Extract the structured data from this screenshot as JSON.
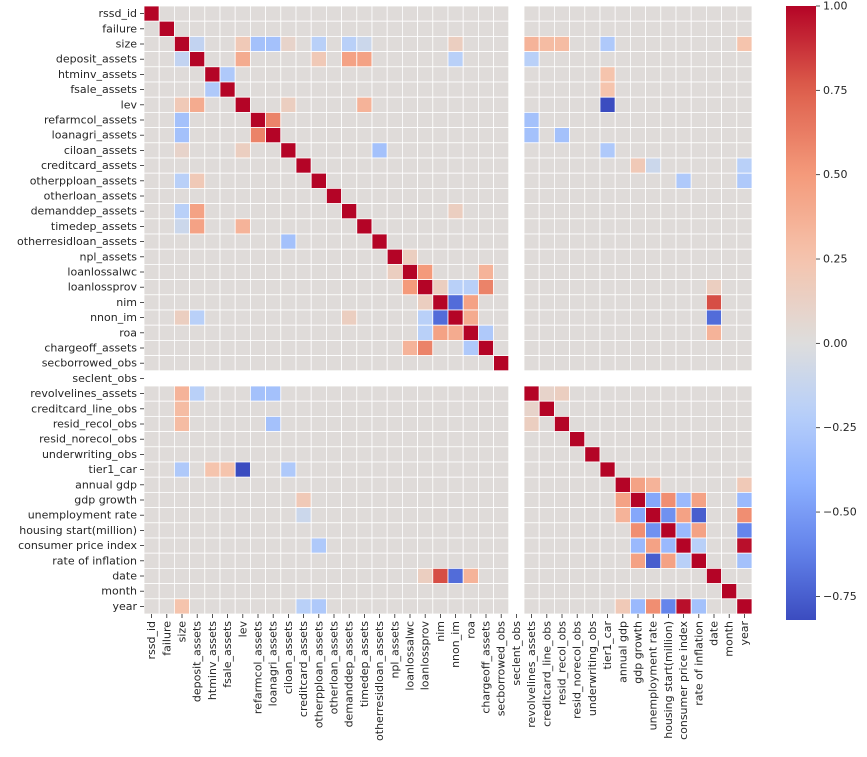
{
  "chart_data": {
    "type": "heatmap",
    "title": "",
    "xlabel": "",
    "ylabel": "",
    "colormap": "coolwarm",
    "vmin": -0.82,
    "vmax": 1.0,
    "nan_color": "#ffffff",
    "grid_color": "#ffffff",
    "labels": [
      "rssd_id",
      "failure",
      "size",
      "deposit_assets",
      "htminv_assets",
      "fsale_assets",
      "lev",
      "refarmcol_assets",
      "loanagri_assets",
      "ciloan_assets",
      "creditcard_assets",
      "otherpploan_assets",
      "otherloan_assets",
      "demanddep_assets",
      "timedep_assets",
      "otherresidloan_assets",
      "npl_assets",
      "loanlossalwc",
      "loanlossprov",
      "nim",
      "nnon_im",
      "roa",
      "chargeoff_assets",
      "secborrowed_obs",
      "seclent_obs",
      "revolvelines_assets",
      "creditcard_line_obs",
      "resid_recol_obs",
      "resid_norecol_obs",
      "underwriting_obs",
      "tier1_car",
      "annual gdp",
      "gdp growth",
      "unemployment rate",
      "housing start(million)",
      "consumer price index",
      "rate of inflation",
      "date",
      "month",
      "year"
    ],
    "default_value": 0.02,
    "nan_rows_cols": [
      "seclent_obs"
    ],
    "pairs": [
      [
        "size",
        "deposit_assets",
        -0.15
      ],
      [
        "size",
        "lev",
        0.2
      ],
      [
        "size",
        "refarmcol_assets",
        -0.3
      ],
      [
        "size",
        "loanagri_assets",
        -0.3
      ],
      [
        "size",
        "ciloan_assets",
        0.1
      ],
      [
        "size",
        "otherpploan_assets",
        -0.2
      ],
      [
        "size",
        "demanddep_assets",
        -0.2
      ],
      [
        "size",
        "timedep_assets",
        -0.1
      ],
      [
        "size",
        "nnon_im",
        0.15
      ],
      [
        "size",
        "revolvelines_assets",
        0.35
      ],
      [
        "size",
        "creditcard_line_obs",
        0.3
      ],
      [
        "size",
        "resid_recol_obs",
        0.3
      ],
      [
        "size",
        "tier1_car",
        -0.25
      ],
      [
        "size",
        "year",
        0.25
      ],
      [
        "deposit_assets",
        "lev",
        0.4
      ],
      [
        "deposit_assets",
        "otherpploan_assets",
        0.2
      ],
      [
        "deposit_assets",
        "demanddep_assets",
        0.45
      ],
      [
        "deposit_assets",
        "timedep_assets",
        0.45
      ],
      [
        "deposit_assets",
        "nnon_im",
        -0.2
      ],
      [
        "deposit_assets",
        "revolvelines_assets",
        -0.2
      ],
      [
        "htminv_assets",
        "fsale_assets",
        -0.25
      ],
      [
        "htminv_assets",
        "tier1_car",
        0.25
      ],
      [
        "fsale_assets",
        "tier1_car",
        0.25
      ],
      [
        "lev",
        "tier1_car",
        -0.82
      ],
      [
        "lev",
        "timedep_assets",
        0.35
      ],
      [
        "lev",
        "ciloan_assets",
        0.15
      ],
      [
        "refarmcol_assets",
        "loanagri_assets",
        0.6
      ],
      [
        "refarmcol_assets",
        "revolvelines_assets",
        -0.3
      ],
      [
        "loanagri_assets",
        "revolvelines_assets",
        -0.3
      ],
      [
        "loanagri_assets",
        "resid_recol_obs",
        -0.3
      ],
      [
        "ciloan_assets",
        "otherresidloan_assets",
        -0.3
      ],
      [
        "ciloan_assets",
        "tier1_car",
        -0.25
      ],
      [
        "creditcard_assets",
        "unemployment rate",
        -0.1
      ],
      [
        "creditcard_assets",
        "gdp growth",
        0.2
      ],
      [
        "creditcard_assets",
        "year",
        -0.2
      ],
      [
        "otherpploan_assets",
        "consumer price index",
        -0.25
      ],
      [
        "otherpploan_assets",
        "year",
        -0.25
      ],
      [
        "demanddep_assets",
        "nnon_im",
        0.15
      ],
      [
        "npl_assets",
        "loanlossalwc",
        0.15
      ],
      [
        "loanlossalwc",
        "loanlossprov",
        0.5
      ],
      [
        "loanlossalwc",
        "chargeoff_assets",
        0.35
      ],
      [
        "loanlossprov",
        "chargeoff_assets",
        0.6
      ],
      [
        "loanlossprov",
        "nim",
        0.15
      ],
      [
        "loanlossprov",
        "nnon_im",
        -0.2
      ],
      [
        "loanlossprov",
        "roa",
        -0.2
      ],
      [
        "loanlossprov",
        "date",
        0.15
      ],
      [
        "nim",
        "nnon_im",
        -0.7
      ],
      [
        "nim",
        "roa",
        0.45
      ],
      [
        "nim",
        "date",
        0.8
      ],
      [
        "nnon_im",
        "roa",
        0.4
      ],
      [
        "nnon_im",
        "date",
        -0.7
      ],
      [
        "roa",
        "chargeoff_assets",
        -0.25
      ],
      [
        "roa",
        "date",
        0.35
      ],
      [
        "revolvelines_assets",
        "creditcard_line_obs",
        0.1
      ],
      [
        "revolvelines_assets",
        "resid_recol_obs",
        0.15
      ],
      [
        "annual gdp",
        "gdp growth",
        0.45
      ],
      [
        "annual gdp",
        "unemployment rate",
        0.35
      ],
      [
        "annual gdp",
        "year",
        0.2
      ],
      [
        "gdp growth",
        "unemployment rate",
        -0.45
      ],
      [
        "gdp growth",
        "housing start(million)",
        0.55
      ],
      [
        "gdp growth",
        "consumer price index",
        -0.35
      ],
      [
        "gdp growth",
        "rate of inflation",
        0.45
      ],
      [
        "gdp growth",
        "year",
        -0.35
      ],
      [
        "unemployment rate",
        "housing start(million)",
        -0.55
      ],
      [
        "unemployment rate",
        "consumer price index",
        0.45
      ],
      [
        "unemployment rate",
        "rate of inflation",
        -0.75
      ],
      [
        "unemployment rate",
        "year",
        0.55
      ],
      [
        "housing start(million)",
        "consumer price index",
        -0.35
      ],
      [
        "housing start(million)",
        "rate of inflation",
        0.45
      ],
      [
        "housing start(million)",
        "year",
        -0.6
      ],
      [
        "consumer price index",
        "rate of inflation",
        -0.2
      ],
      [
        "consumer price index",
        "year",
        0.97
      ],
      [
        "rate of inflation",
        "year",
        -0.3
      ]
    ],
    "colorbar": {
      "ticks": [
        1.0,
        0.75,
        0.5,
        0.25,
        0.0,
        -0.25,
        -0.5,
        -0.75
      ],
      "tick_labels": [
        "1.00",
        "0.75",
        "0.50",
        "0.25",
        "0.00",
        "−0.25",
        "−0.50",
        "−0.75"
      ]
    }
  }
}
